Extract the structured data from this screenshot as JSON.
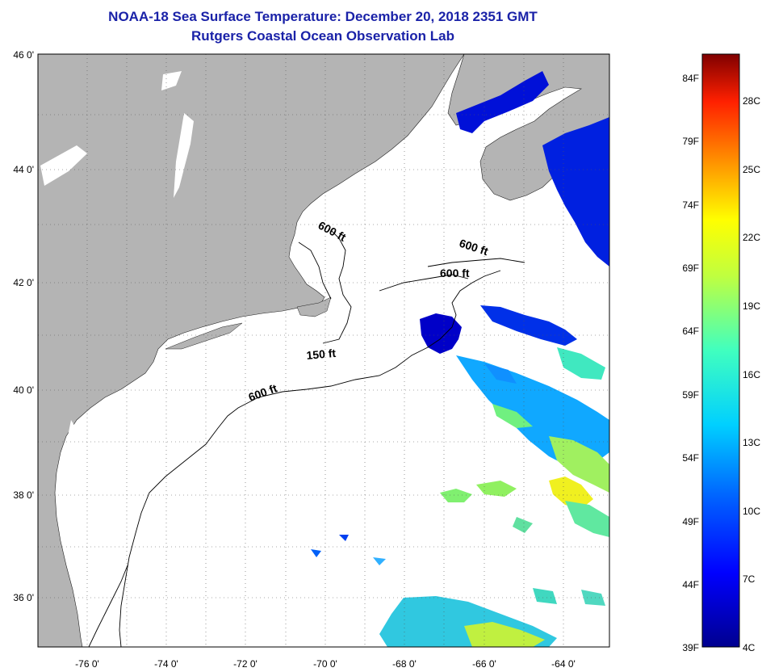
{
  "title": "NOAA-18 Sea Surface Temperature:  December 20, 2018 2351 GMT",
  "subtitle": "Rutgers Coastal Ocean Observation Lab",
  "map": {
    "lat_labels": [
      "46 0'",
      "44 0'",
      "42 0'",
      "40 0'",
      "38 0'",
      "36 0'"
    ],
    "lon_labels": [
      "-76 0'",
      "-74 0'",
      "-72 0'",
      "-70 0'",
      "-68 0'",
      "-66 0'",
      "-64 0'"
    ],
    "contour_labels": [
      "600 ft",
      "600 ft",
      "600 ft",
      "150 ft",
      "600 ft"
    ],
    "land_color": "#b4b4b4",
    "water_color": "#ffffff"
  },
  "colorbar": {
    "fahrenheit_labels": [
      "84F",
      "79F",
      "74F",
      "69F",
      "64F",
      "59F",
      "54F",
      "49F",
      "44F",
      "39F"
    ],
    "celsius_labels": [
      "28C",
      "25C",
      "22C",
      "19C",
      "16C",
      "13C",
      "10C",
      "7C",
      "4C"
    ],
    "min_color": "#00008f",
    "max_color": "#800000"
  }
}
